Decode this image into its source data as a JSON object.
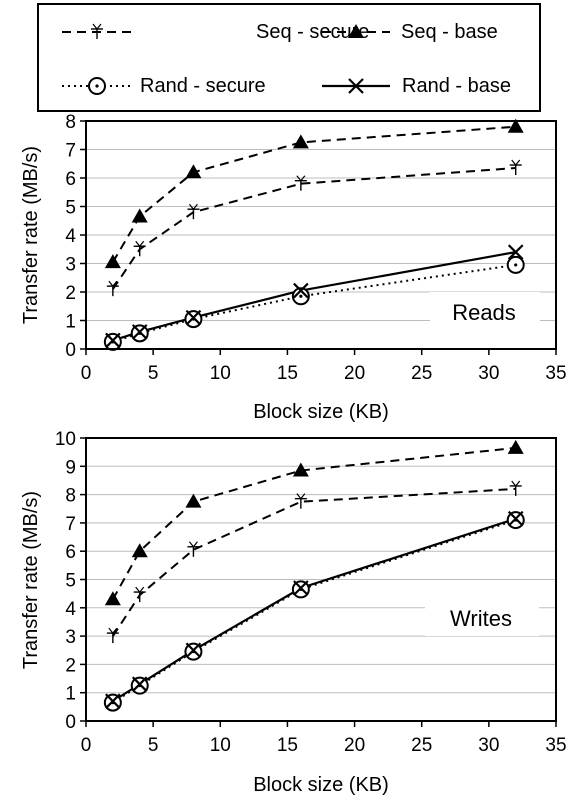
{
  "legend": {
    "items": [
      {
        "key": "seq_secure",
        "label": "Seq - secure"
      },
      {
        "key": "seq_base",
        "label": "Seq - base"
      },
      {
        "key": "rand_secure",
        "label": "Rand - secure"
      },
      {
        "key": "rand_base",
        "label": "Rand - base"
      }
    ]
  },
  "chart_data": [
    {
      "type": "line",
      "title": "",
      "panel_label": "Reads",
      "xlabel": "Block size (KB)",
      "ylabel": "Transfer rate (MB/s)",
      "xlim": [
        0,
        35
      ],
      "ylim": [
        0,
        8
      ],
      "xticks": [
        0,
        5,
        10,
        15,
        20,
        25,
        30,
        35
      ],
      "yticks": [
        0,
        1,
        2,
        3,
        4,
        5,
        6,
        7,
        8
      ],
      "grid": "horizontal",
      "x": [
        2,
        4,
        8,
        16,
        32
      ],
      "series": [
        {
          "key": "seq_secure",
          "name": "Seq - secure",
          "values": [
            2.1,
            3.5,
            4.8,
            5.8,
            6.35
          ]
        },
        {
          "key": "seq_base",
          "name": "Seq - base",
          "values": [
            3.05,
            4.65,
            6.2,
            7.25,
            7.8
          ]
        },
        {
          "key": "rand_secure",
          "name": "Rand - secure",
          "values": [
            0.25,
            0.55,
            1.05,
            1.85,
            2.95
          ]
        },
        {
          "key": "rand_base",
          "name": "Rand - base",
          "values": [
            0.3,
            0.6,
            1.1,
            2.05,
            3.4
          ]
        }
      ]
    },
    {
      "type": "line",
      "title": "",
      "panel_label": "Writes",
      "xlabel": "Block size (KB)",
      "ylabel": "Transfer rate (MB/s)",
      "xlim": [
        0,
        35
      ],
      "ylim": [
        0,
        10
      ],
      "xticks": [
        0,
        5,
        10,
        15,
        20,
        25,
        30,
        35
      ],
      "yticks": [
        0,
        1,
        2,
        3,
        4,
        5,
        6,
        7,
        8,
        9,
        10
      ],
      "grid": "horizontal",
      "x": [
        2,
        4,
        8,
        16,
        32
      ],
      "series": [
        {
          "key": "seq_secure",
          "name": "Seq - secure",
          "values": [
            3.0,
            4.45,
            6.05,
            7.75,
            8.2
          ]
        },
        {
          "key": "seq_base",
          "name": "Seq - base",
          "values": [
            4.3,
            6.0,
            7.75,
            8.85,
            9.65
          ]
        },
        {
          "key": "rand_secure",
          "name": "Rand - secure",
          "values": [
            0.65,
            1.25,
            2.45,
            4.65,
            7.1
          ]
        },
        {
          "key": "rand_base",
          "name": "Rand - base",
          "values": [
            0.7,
            1.3,
            2.5,
            4.7,
            7.15
          ]
        }
      ]
    }
  ]
}
